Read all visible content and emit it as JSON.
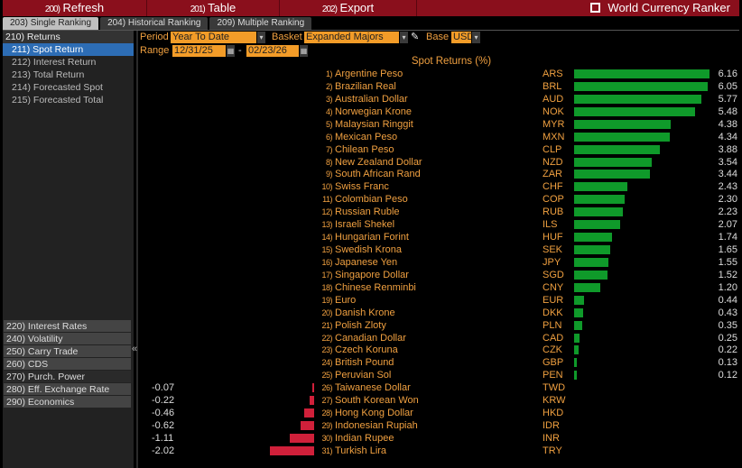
{
  "toolbar": {
    "refresh": {
      "num": "200)",
      "label": "Refresh"
    },
    "table": {
      "num": "201)",
      "label": "Table"
    },
    "export": {
      "num": "202)",
      "label": "Export"
    },
    "title": "World Currency Ranker"
  },
  "tabs": [
    {
      "label": "203) Single Ranking",
      "active": true
    },
    {
      "label": "204) Historical Ranking"
    },
    {
      "label": "209) Multiple Ranking"
    }
  ],
  "sidebar": {
    "returns": "210) Returns",
    "sub": [
      "211) Spot Return",
      "212) Interest Return",
      "213) Total Return",
      "214) Forecasted Spot",
      "215) Forecasted Total"
    ],
    "sections": [
      "220) Interest Rates",
      "240) Volatility",
      "250) Carry Trade",
      "260) CDS",
      "270) Purch. Power",
      "280) Eff. Exchange Rate",
      "290) Economics"
    ],
    "collapse": "«"
  },
  "controls": {
    "period_label": "Period",
    "period": "Year To Date",
    "basket_label": "Basket",
    "basket": "Expanded Majors",
    "base_label": "Base",
    "base": "USD",
    "range_label": "Range",
    "start": "12/31/25",
    "end": "02/23/26",
    "sep": "-"
  },
  "colors": {
    "positive": "#0f9a2a",
    "negative": "#d0203a",
    "accent": "#f39c28",
    "header": "#8a0f1c"
  },
  "chart_data": {
    "type": "bar",
    "title": "Spot Returns (%)",
    "rows": [
      [
        "1)",
        "Argentine Peso",
        "ARS",
        6.16
      ],
      [
        "2)",
        "Brazilian Real",
        "BRL",
        6.05
      ],
      [
        "3)",
        "Australian Dollar",
        "AUD",
        5.77
      ],
      [
        "4)",
        "Norwegian Krone",
        "NOK",
        5.48
      ],
      [
        "5)",
        "Malaysian Ringgit",
        "MYR",
        4.38
      ],
      [
        "6)",
        "Mexican Peso",
        "MXN",
        4.34
      ],
      [
        "7)",
        "Chilean Peso",
        "CLP",
        3.88
      ],
      [
        "8)",
        "New Zealand Dollar",
        "NZD",
        3.54
      ],
      [
        "9)",
        "South African Rand",
        "ZAR",
        3.44
      ],
      [
        "10)",
        "Swiss Franc",
        "CHF",
        2.43
      ],
      [
        "11)",
        "Colombian Peso",
        "COP",
        2.3
      ],
      [
        "12)",
        "Russian Ruble",
        "RUB",
        2.23
      ],
      [
        "13)",
        "Israeli Shekel",
        "ILS",
        2.07
      ],
      [
        "14)",
        "Hungarian Forint",
        "HUF",
        1.74
      ],
      [
        "15)",
        "Swedish Krona",
        "SEK",
        1.65
      ],
      [
        "16)",
        "Japanese Yen",
        "JPY",
        1.55
      ],
      [
        "17)",
        "Singapore Dollar",
        "SGD",
        1.52
      ],
      [
        "18)",
        "Chinese Renminbi",
        "CNY",
        1.2
      ],
      [
        "19)",
        "Euro",
        "EUR",
        0.44
      ],
      [
        "20)",
        "Danish Krone",
        "DKK",
        0.43
      ],
      [
        "21)",
        "Polish Zloty",
        "PLN",
        0.35
      ],
      [
        "22)",
        "Canadian Dollar",
        "CAD",
        0.25
      ],
      [
        "23)",
        "Czech Koruna",
        "CZK",
        0.22
      ],
      [
        "24)",
        "British Pound",
        "GBP",
        0.13
      ],
      [
        "25)",
        "Peruvian Sol",
        "PEN",
        0.12
      ],
      [
        "26)",
        "Taiwanese Dollar",
        "TWD",
        -0.07
      ],
      [
        "27)",
        "South Korean Won",
        "KRW",
        -0.22
      ],
      [
        "28)",
        "Hong Kong Dollar",
        "HKD",
        -0.46
      ],
      [
        "29)",
        "Indonesian Rupiah",
        "IDR",
        -0.62
      ],
      [
        "30)",
        "Indian Rupee",
        "INR",
        -1.11
      ],
      [
        "31)",
        "Turkish Lira",
        "TRY",
        -2.02
      ]
    ]
  }
}
